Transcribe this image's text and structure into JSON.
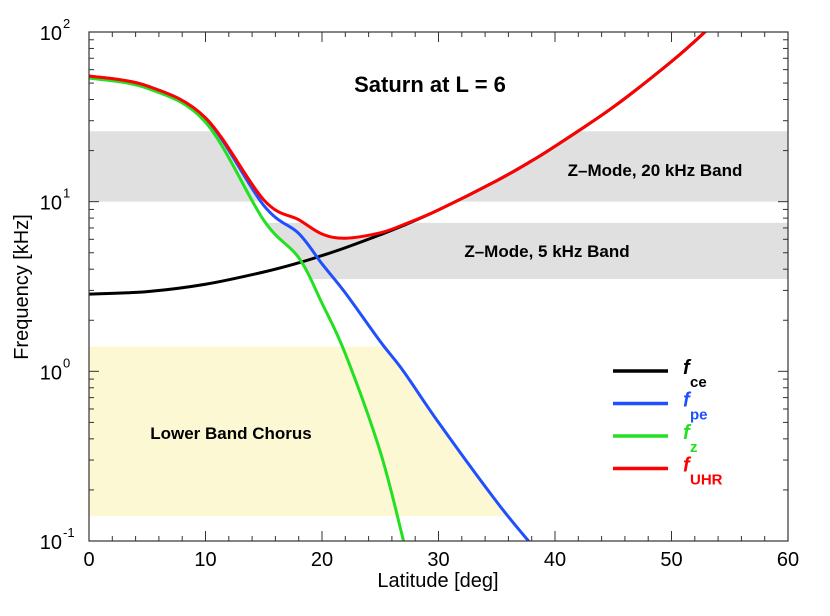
{
  "chart_data": {
    "type": "line",
    "title": "Saturn at L = 6",
    "xlabel": "Latitude [deg]",
    "ylabel": "Frequency [kHz]",
    "xlim": [
      0,
      60
    ],
    "ylim": [
      0.1,
      100
    ],
    "yscale": "log",
    "grid": false,
    "legend_placement": "right",
    "x_ticks": [
      "0",
      "10",
      "20",
      "30",
      "40",
      "50",
      "60"
    ],
    "y_ticks": [
      {
        "base": "10",
        "exp": "-1",
        "value": 0.1
      },
      {
        "base": "10",
        "exp": "0",
        "value": 1
      },
      {
        "base": "10",
        "exp": "1",
        "value": 10
      },
      {
        "base": "10",
        "exp": "2",
        "value": 100
      }
    ],
    "series": [
      {
        "name": "f",
        "sub": "ce",
        "color": "#000000",
        "x": [
          0,
          5,
          10,
          15,
          18,
          20,
          22,
          25,
          27,
          30,
          35,
          38,
          40,
          45,
          50,
          53,
          55
        ],
        "values": [
          2.85,
          2.95,
          3.26,
          3.85,
          4.36,
          4.81,
          5.35,
          6.38,
          7.25,
          8.94,
          13.3,
          17.4,
          21.2,
          36.1,
          67,
          102,
          139
        ]
      },
      {
        "name": "f",
        "sub": "pe",
        "color": "#1f4fff",
        "x": [
          0,
          5,
          10,
          15,
          18,
          20,
          22,
          25,
          27,
          30,
          35,
          38
        ],
        "values": [
          55,
          48,
          31,
          9.5,
          6.5,
          4.3,
          2.9,
          1.5,
          1.0,
          0.5,
          0.17,
          0.095
        ]
      },
      {
        "name": "f",
        "sub": "z",
        "color": "#22e022",
        "x": [
          0,
          5,
          10,
          15,
          18,
          20,
          22,
          25,
          27
        ],
        "values": [
          53.6,
          46.6,
          29.4,
          7.77,
          4.68,
          2.52,
          1.27,
          0.336,
          0.1
        ]
      },
      {
        "name": "f",
        "sub": "UHR",
        "color": "#ff0000",
        "x": [
          0,
          5,
          10,
          15,
          18,
          20,
          22,
          25,
          27,
          30,
          35,
          38,
          40,
          45,
          50,
          53,
          55
        ],
        "values": [
          55.1,
          48.1,
          31.2,
          10.25,
          7.83,
          6.45,
          6.09,
          6.55,
          7.32,
          8.95,
          13.3,
          17.4,
          21.2,
          36.1,
          67,
          102,
          139
        ]
      }
    ],
    "regions": [
      {
        "label": "Z–Mode, 20 kHz Band",
        "ymin": 10,
        "ymax": 26,
        "color": "#e0e0e0",
        "bound": "above fUHR"
      },
      {
        "label": "Z–Mode, 5 kHz Band",
        "ymin": 3.5,
        "ymax": 7.5,
        "color": "#e0e0e0",
        "bound": "between fz and fUHR"
      },
      {
        "label": "Lower Band Chorus",
        "ymin": 0.14,
        "ymax": 1.4,
        "color": "#fcf8d4",
        "bound": "below fpe"
      }
    ]
  }
}
